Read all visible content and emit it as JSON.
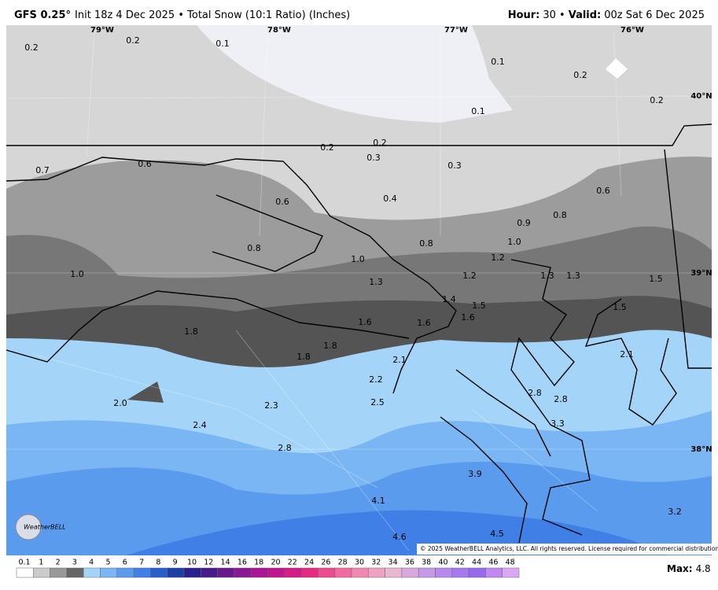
{
  "header": {
    "model": "GFS 0.25°",
    "product": "Init 18z 4 Dec 2025 • Total Snow (10:1 Ratio) (Inches)",
    "hour_label": "Hour:",
    "hour": "30 •",
    "valid_label": "Valid:",
    "valid": "00z Sat 6 Dec 2025"
  },
  "map": {
    "longitude_labels": [
      "79°W",
      "78°W",
      "77°W",
      "76°W"
    ],
    "latitude_labels": [
      "40°N",
      "39°N",
      "38°N"
    ],
    "snow_labels": [
      "0.2",
      "0.2",
      "0.1",
      "0.1",
      "0.2",
      "0.2",
      "0.1",
      "0.2",
      "0.2",
      "0.3",
      "0.3",
      "0.7",
      "0.6",
      "0.6",
      "0.4",
      "0.6",
      "0.8",
      "0.9",
      "1.0",
      "0.8",
      "0.8",
      "1.0",
      "1.2",
      "1.0",
      "1.3",
      "1.2",
      "1.3",
      "1.3",
      "1.5",
      "1.4",
      "1.5",
      "1.5",
      "1.6",
      "1.6",
      "1.6",
      "1.8",
      "1.8",
      "1.8",
      "2.1",
      "2.1",
      "2.2",
      "2.8",
      "2.8",
      "2.0",
      "2.5",
      "2.3",
      "3.3",
      "2.4",
      "2.8",
      "3.9",
      "4.1",
      "4.5",
      "4.6",
      "3.2"
    ]
  },
  "logo": "WeatherBELL",
  "copyright": "© 2025 WeatherBELL Analytics, LLC. All rights reserved. License required for commercial distribution.",
  "colorbar": {
    "ticks": [
      0.1,
      1,
      2,
      3,
      4,
      5,
      6,
      7,
      8,
      9,
      10,
      12,
      14,
      16,
      18,
      20,
      22,
      24,
      26,
      28,
      30,
      32,
      34,
      36,
      38,
      40,
      42,
      44,
      46,
      48
    ]
  },
  "max": {
    "label": "Max:",
    "value": "4.8"
  }
}
